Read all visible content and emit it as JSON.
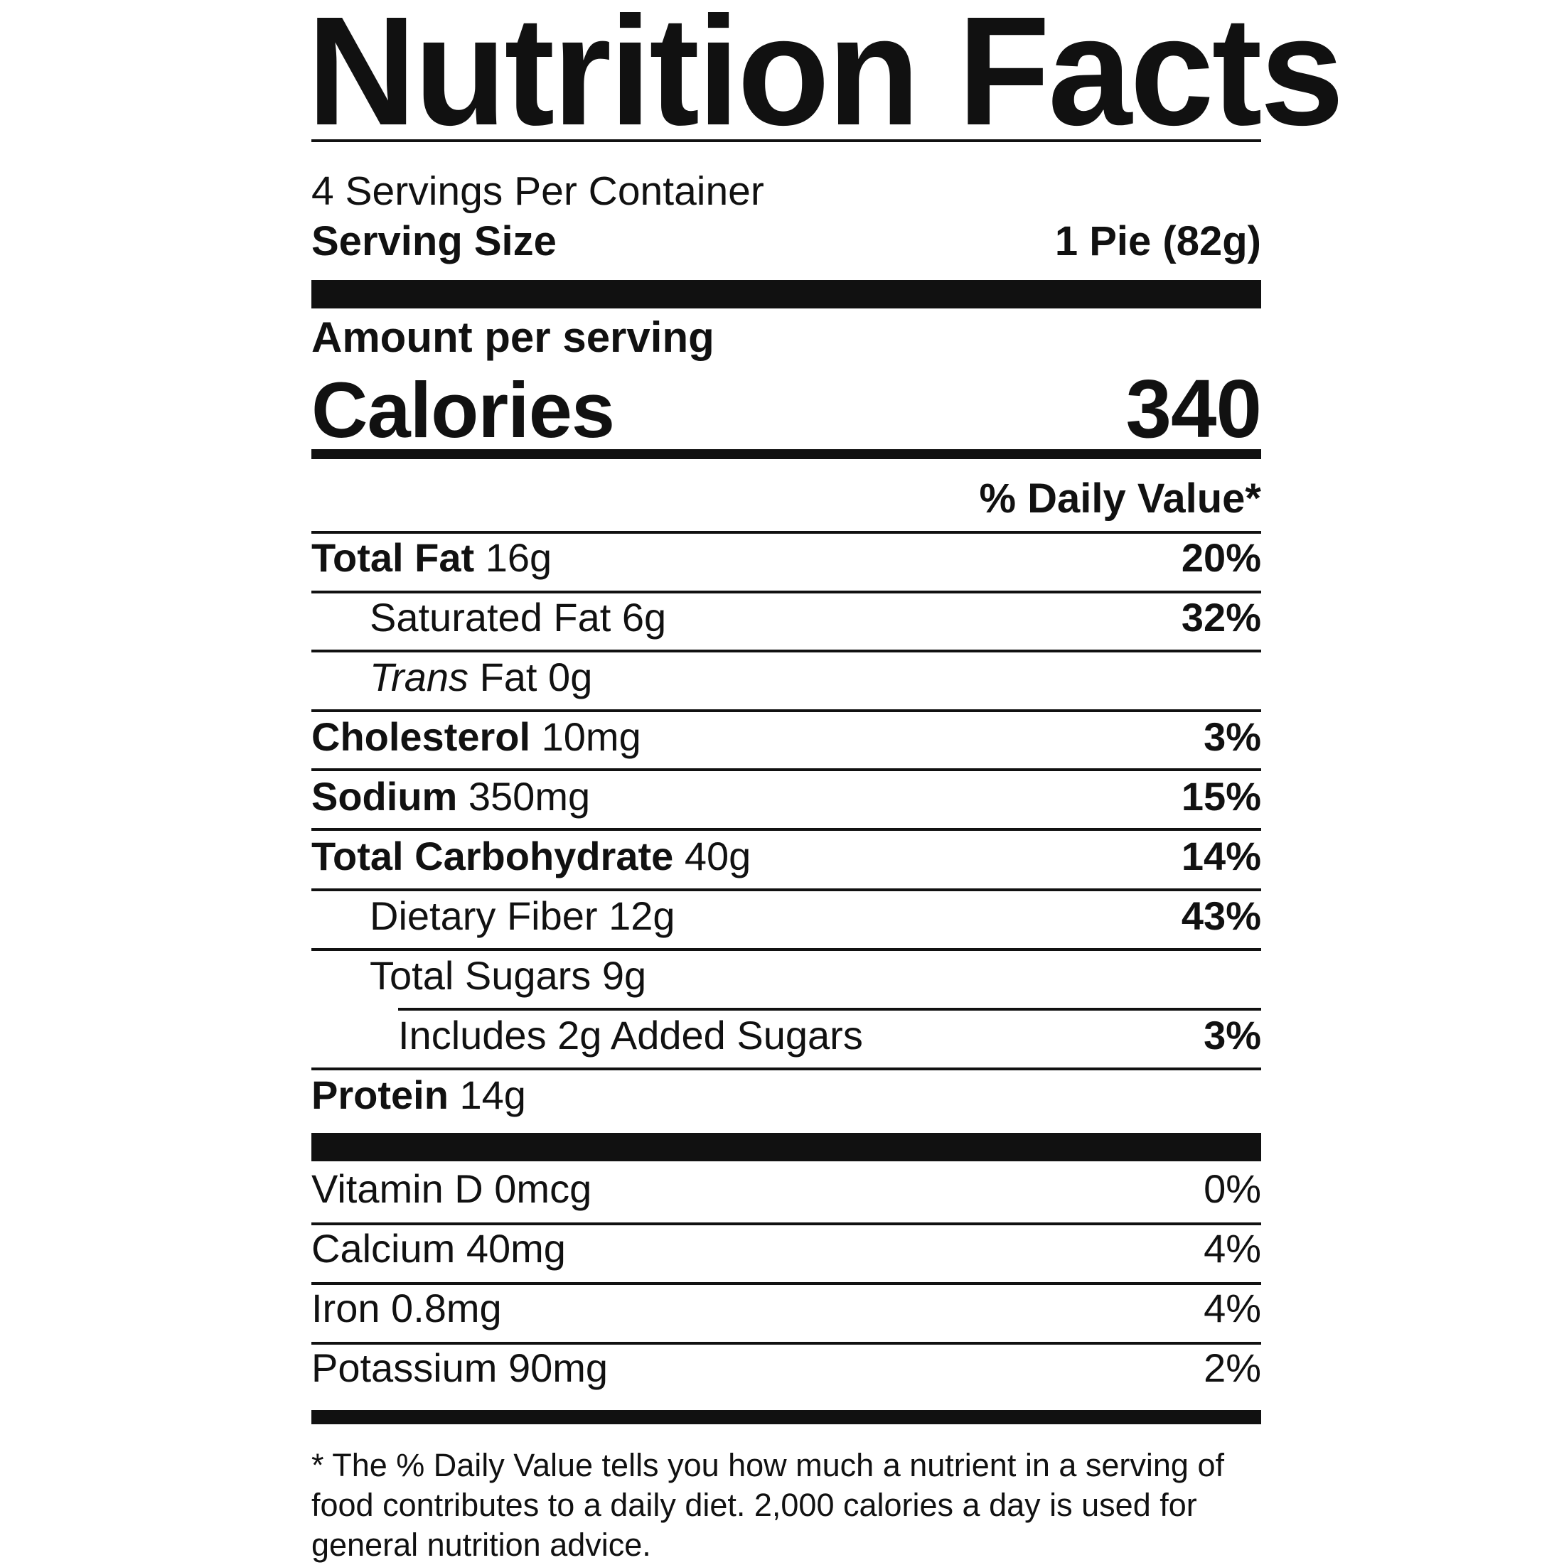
{
  "title": "Nutrition Facts",
  "servings_per_container": "4 Servings Per Container",
  "serving_size": {
    "label": "Serving Size",
    "value": "1 Pie (82g)"
  },
  "amount_per_serving": "Amount per serving",
  "calories": {
    "label": "Calories",
    "value": "340"
  },
  "daily_value_header": "% Daily Value*",
  "nutrients": [
    {
      "name": "Total Fat",
      "amount": "16g",
      "dv": "20%"
    },
    {
      "name": "Saturated Fat",
      "amount": "6g",
      "dv": "32%"
    },
    {
      "name_italic": "Trans",
      "name": "Fat",
      "amount": "0g",
      "dv": ""
    },
    {
      "name": "Cholesterol",
      "amount": "10mg",
      "dv": "3%"
    },
    {
      "name": "Sodium",
      "amount": "350mg",
      "dv": "15%"
    },
    {
      "name": "Total Carbohydrate",
      "amount": "40g",
      "dv": "14%"
    },
    {
      "name": "Dietary Fiber",
      "amount": "12g",
      "dv": "43%"
    },
    {
      "name": "Total Sugars",
      "amount": "9g",
      "dv": ""
    },
    {
      "name": "Includes 2g Added Sugars",
      "amount": "",
      "dv": "3%"
    },
    {
      "name": "Protein",
      "amount": "14g",
      "dv": ""
    }
  ],
  "vitamins": [
    {
      "text": "Vitamin D 0mcg",
      "dv": "0%"
    },
    {
      "text": "Calcium 40mg",
      "dv": "4%"
    },
    {
      "text": "Iron 0.8mg",
      "dv": "4%"
    },
    {
      "text": "Potassium 90mg",
      "dv": "2%"
    }
  ],
  "footnote": "* The % Daily Value tells you how much a nutrient in a serving of food contributes to a daily diet. 2,000 calories a day is used for general nutrition advice."
}
